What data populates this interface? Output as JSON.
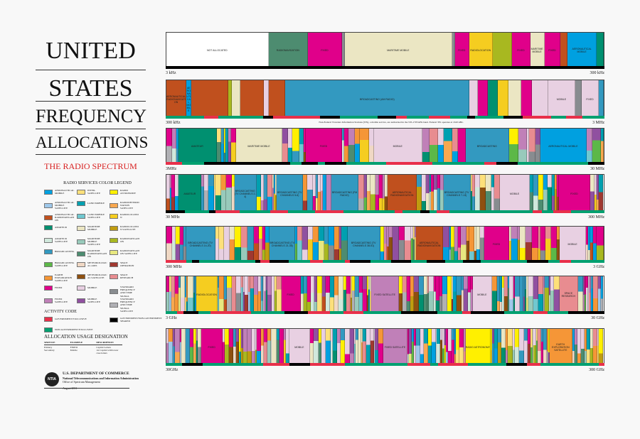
{
  "title": {
    "line1": "UNITED",
    "line2": "STATES",
    "line3": "FREQUENCY",
    "line4": "ALLOCATIONS",
    "subtitle": "THE RADIO SPECTRUM"
  },
  "legend": {
    "title": "RADIO SERVICES COLOR LEGEND",
    "items": [
      {
        "label": "Aeronautical Mobile",
        "color": "#00a0e0"
      },
      {
        "label": "Aeronautical Mobile Satellite",
        "color": "#9ec8ea"
      },
      {
        "label": "Aeronautical Radionavigation",
        "color": "#c0501e"
      },
      {
        "label": "Amateur",
        "color": "#009070"
      },
      {
        "label": "Amateur Satellite",
        "color": "#d0e8dc"
      },
      {
        "label": "Broadcasting",
        "color": "#3399c0"
      },
      {
        "label": "Broadcasting Satellite",
        "color": "#5cb848"
      },
      {
        "label": "Earth Exploration Satellite",
        "color": "#f59637"
      },
      {
        "label": "Fixed",
        "color": "#e0008a"
      },
      {
        "label": "Fixed Satellite",
        "color": "#c080b8"
      },
      {
        "label": "Inter-Satellite",
        "color": "#fde07a"
      },
      {
        "label": "Land Mobile",
        "color": "#00a0b0"
      },
      {
        "label": "Land Mobile Satellite",
        "color": "#70c8d0"
      },
      {
        "label": "Maritime Mobile",
        "color": "#ebe6c3"
      },
      {
        "label": "Maritime Mobile Satellite",
        "color": "#98cabb"
      },
      {
        "label": "Maritime Radionavigation",
        "color": "#4d8c70"
      },
      {
        "label": "Meteorological Aids",
        "color": "#f0d8c4"
      },
      {
        "label": "Meteorological Satellite",
        "color": "#8e5010"
      },
      {
        "label": "Mobile",
        "color": "#e8d0e2"
      },
      {
        "label": "Mobile Satellite",
        "color": "#9050a0"
      },
      {
        "label": "Radio Astronomy",
        "color": "#fff000"
      },
      {
        "label": "Radiodetermination Satellite",
        "color": "#f8a850"
      },
      {
        "label": "Radiolocation",
        "color": "#f5cd20"
      },
      {
        "label": "Radiolocation Satellite",
        "color": "#c09c10"
      },
      {
        "label": "Radionavigation",
        "color": "#a8b820"
      },
      {
        "label": "Radionavigation Satellite",
        "color": "#e8e880"
      },
      {
        "label": "Space Operation",
        "color": "#a03830"
      },
      {
        "label": "Space Research",
        "color": "#e88c90"
      },
      {
        "label": "Standard Frequency and Time Signal",
        "color": "#888c90"
      },
      {
        "label": "Standard Frequency and Time Signal Satellite",
        "color": "#b0b0b4"
      }
    ]
  },
  "activity": {
    "title": "ACTIVITY CODE",
    "items": [
      {
        "label": "Government Exclusive",
        "color": "#e8304a"
      },
      {
        "label": "Government/Non-Government Shared",
        "color": "#000000"
      },
      {
        "label": "Non-Government Exclusive",
        "color": "#00a070"
      }
    ]
  },
  "usage": {
    "title": "ALLOCATION USAGE DESIGNATION",
    "headers": [
      "SERVICE",
      "EXAMPLE",
      "DESCRIPTION"
    ],
    "rows": [
      [
        "Primary",
        "FIXED",
        "Capital Letters"
      ],
      [
        "Secondary",
        "Mobile",
        "1st Capital with lower case letters"
      ]
    ]
  },
  "footer": {
    "dept": "U.S. DEPARTMENT OF COMMERCE",
    "agency": "National Telecommunications and Information Administration",
    "office": "Office of Spectrum Management",
    "date": "August 2011",
    "logo": "NTIA"
  },
  "rows": [
    {
      "start": "3 kHz",
      "end": "300 kHz",
      "labels": [
        "NOT ALLOCATED",
        "RADIONAVIGATION",
        "FIXED",
        "MARITIME MOBILE",
        "FIXED",
        "Radiolocation",
        "MARITIME MOBILE",
        "FIXED",
        "Aeronautical Mobile"
      ]
    },
    {
      "start": "300 kHz",
      "end": "3 MHz",
      "labels": [
        "Aeronautical Radionavigation",
        "Aeronautical Mobile",
        "Maritime Mobile",
        "BROADCASTING (AM RADIO)",
        "MOBILE",
        "FIXED"
      ],
      "note": "Non-Federal Travelers Information Stations (TIS), a mobile service, are authorized in the 535-1705 kHz band. Federal TIS operates at 1610 kHz."
    },
    {
      "start": "3MHz",
      "end": "30 MHz",
      "labels": [
        "AMATEUR",
        "MARITIME MOBILE",
        "FIXED",
        "MOBILE",
        "BROADCASTING",
        "AERONAUTICAL MOBILE"
      ]
    },
    {
      "start": "30 MHz",
      "end": "300 MHz",
      "labels": [
        "AMATEUR",
        "BROADCASTING (TV CHANNELS 2-4)",
        "BROADCASTING (TV CHANNELS 5-6)",
        "BROADCASTING (FM RADIO)",
        "AERONAUTICAL RADIONAVIGATION",
        "BROADCASTING (TV CHANNELS 7-13)",
        "MOBILE",
        "FIXED"
      ]
    },
    {
      "start": "300 MHz",
      "end": "3 GHz",
      "labels": [
        "BROADCASTING (TV CHANNELS 14-20)",
        "BROADCASTING (TV CHANNELS 21-36)",
        "BROADCASTING (TV CHANNELS 38-51)",
        "AERONAUTICAL RADIONAVIGATION",
        "FIXED",
        "MOBILE"
      ]
    },
    {
      "start": "3 GHz",
      "end": "30 GHz",
      "labels": [
        "RADIOLOCATION",
        "FIXED",
        "FIXED SATELLITE",
        "MOBILE",
        "SPACE RESEARCH"
      ]
    },
    {
      "start": "30GHz",
      "end": "300 GHz",
      "labels": [
        "FIXED",
        "MOBILE",
        "FIXED SATELLITE",
        "RADIO ASTRONOMY",
        "EARTH EXPLORATION SATELLITE"
      ]
    }
  ]
}
